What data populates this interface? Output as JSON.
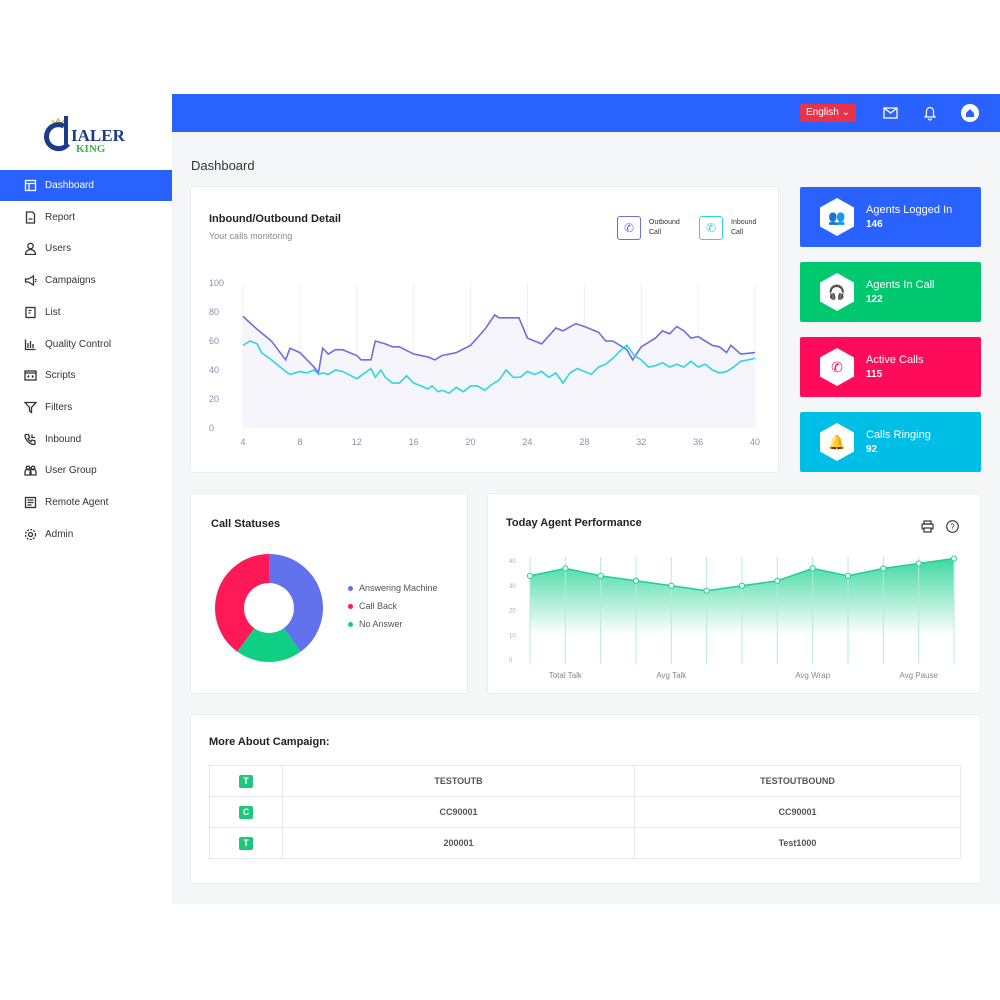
{
  "logo": {
    "text": "DIALER KING"
  },
  "sidebar": {
    "items": [
      {
        "label": "Dashboard",
        "icon": "layout-icon",
        "active": true
      },
      {
        "label": "Report",
        "icon": "file-icon"
      },
      {
        "label": "Users",
        "icon": "user-icon"
      },
      {
        "label": "Campaigns",
        "icon": "megaphone-icon"
      },
      {
        "label": "List",
        "icon": "list-icon"
      },
      {
        "label": "Quality Control",
        "icon": "bar-chart-icon"
      },
      {
        "label": "Scripts",
        "icon": "code-icon"
      },
      {
        "label": "Filters",
        "icon": "filter-icon"
      },
      {
        "label": "Inbound",
        "icon": "phone-incoming-icon"
      },
      {
        "label": "User Group",
        "icon": "users-group-icon"
      },
      {
        "label": "Remote Agent",
        "icon": "remote-agent-icon"
      },
      {
        "label": "Admin",
        "icon": "gear-icon"
      }
    ]
  },
  "topbar": {
    "language": "English",
    "language_color": "#e8334a",
    "accent": "#2962ff"
  },
  "page_title": "Dashboard",
  "inout": {
    "title": "Inbound/Outbound Detail",
    "subtitle": "Your calls monitoring",
    "legend_outbound_1": "Outbound",
    "legend_outbound_2": "Call",
    "legend_inbound_1": "Inbound",
    "legend_inbound_2": "Call"
  },
  "stats": [
    {
      "label": "Agents Logged In",
      "value": "146",
      "color": "#2962ff",
      "icon": "users-icon"
    },
    {
      "label": "Agents In Call",
      "value": "122",
      "color": "#00c86f",
      "icon": "headset-icon"
    },
    {
      "label": "Active Calls",
      "value": "115",
      "color": "#ff0b5c",
      "icon": "phone-icon"
    },
    {
      "label": "Calls Ringing",
      "value": "92",
      "color": "#00bfe6",
      "icon": "bell-ringing-icon"
    }
  ],
  "call_statuses": {
    "title": "Call Statuses"
  },
  "performance": {
    "title": "Today Agent Performance"
  },
  "campaign": {
    "title": "More About Campaign:",
    "rows": [
      {
        "badge": "T",
        "name": "TESTOUTB",
        "desc": "TESTOUTBOUND"
      },
      {
        "badge": "C",
        "name": "CC90001",
        "desc": "CC90001"
      },
      {
        "badge": "T",
        "name": "200001",
        "desc": "Test1000"
      }
    ]
  },
  "chart_data": [
    {
      "type": "line",
      "xlim": [
        4,
        40
      ],
      "ylim": [
        0,
        100
      ],
      "xticks": [
        "4",
        "8",
        "12",
        "16",
        "20",
        "24",
        "28",
        "32",
        "36",
        "40"
      ],
      "yticks": [
        "0",
        "20",
        "40",
        "60",
        "80",
        "100"
      ],
      "grid": "vertical",
      "series": [
        {
          "name": "Outbound Call",
          "color": "#6c6fdc",
          "x": [
            4,
            5,
            6,
            7,
            7.3,
            8,
            9,
            9.3,
            9.6,
            10,
            10.5,
            11,
            12,
            12.3,
            13,
            13.3,
            14,
            14.5,
            15,
            16,
            17,
            17.5,
            18,
            19,
            20,
            21,
            21.7,
            22,
            23,
            23.4,
            24,
            25,
            26,
            26.5,
            27.4,
            28,
            29,
            29.5,
            30,
            31,
            31.4,
            32,
            33,
            33.5,
            34,
            34.5,
            35,
            35.5,
            36,
            37,
            37.5,
            38,
            38.3,
            39,
            40
          ],
          "y": [
            77,
            68,
            60,
            47,
            55,
            52,
            42,
            38,
            55,
            51,
            54,
            54,
            50,
            47,
            47,
            60,
            58,
            56,
            56,
            51,
            49,
            47,
            50,
            52,
            57,
            68,
            78,
            76,
            76,
            76,
            62,
            58,
            69,
            67,
            72,
            70,
            66,
            60,
            60,
            54,
            47,
            56,
            62,
            67,
            65,
            70,
            67,
            62,
            63,
            57,
            56,
            52,
            57,
            51,
            52
          ]
        },
        {
          "name": "Inbound Call",
          "color": "#2fd5e0",
          "x": [
            4,
            4.5,
            5,
            5.3,
            6,
            7,
            7.3,
            8,
            8.5,
            9,
            9.3,
            9.6,
            10,
            10.5,
            11,
            12,
            13,
            13.3,
            13.7,
            14,
            14.5,
            15,
            15.5,
            16,
            17,
            17.3,
            17.7,
            18,
            18.5,
            19,
            19.5,
            20,
            20.5,
            21,
            21.5,
            22,
            22.5,
            23,
            23.5,
            24,
            24.5,
            25,
            25.5,
            26,
            26.5,
            27,
            27.5,
            28,
            28.5,
            29,
            29.5,
            30,
            30.5,
            31,
            31.5,
            32,
            32.5,
            33,
            33.5,
            34,
            34.5,
            35,
            35.5,
            36,
            36.5,
            37,
            37.5,
            38,
            38.5,
            39,
            39.5,
            40
          ],
          "y": [
            57,
            60,
            58,
            52,
            47,
            39,
            37,
            39,
            38,
            40,
            37,
            38,
            37,
            40,
            39,
            34,
            41,
            35,
            40,
            35,
            31,
            31,
            36,
            31,
            27,
            29,
            25,
            26,
            24,
            28,
            25,
            29,
            29,
            26,
            30,
            33,
            40,
            35,
            35,
            39,
            37,
            39,
            35,
            38,
            31,
            38,
            41,
            39,
            37,
            42,
            44,
            48,
            53,
            57,
            50,
            47,
            42,
            43,
            45,
            42,
            44,
            42,
            46,
            42,
            44,
            40,
            38,
            39,
            42,
            46,
            47,
            48
          ]
        }
      ]
    },
    {
      "type": "pie",
      "title": "Call Statuses",
      "donut": true,
      "labels": [
        "Answering Machine",
        "No Answer",
        "Call Back"
      ],
      "values": [
        40,
        20,
        40
      ],
      "colors": [
        "#6271ec",
        "#0fcf84",
        "#ff1a57"
      ],
      "legend": [
        {
          "label": "Answering Machine",
          "color": "#6271ec"
        },
        {
          "label": "Call Back",
          "color": "#ff1a57"
        },
        {
          "label": "No Answer",
          "color": "#0fcf84"
        }
      ]
    },
    {
      "type": "area",
      "title": "Today Agent Performance",
      "ylim": [
        0,
        40
      ],
      "yticks": [
        "0",
        "10",
        "20",
        "30",
        "40"
      ],
      "xlabels": [
        "Total Talk",
        "Avg Talk",
        "Avg Wrap",
        "Avg Pause"
      ],
      "values": [
        34,
        37,
        34,
        32,
        30,
        28,
        30,
        32,
        37,
        34,
        37,
        39,
        41
      ],
      "color": "#1dd192"
    }
  ]
}
